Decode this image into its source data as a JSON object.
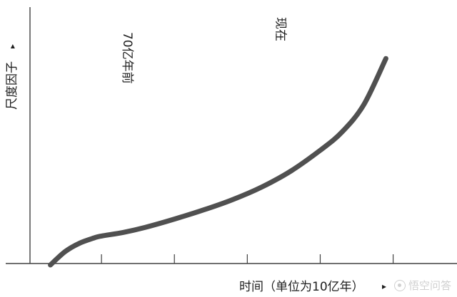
{
  "chart_data": {
    "type": "line",
    "title": "",
    "xlabel": "时间（单位为10亿年）",
    "ylabel": "尺度因子",
    "x_axis_arrow": "▸",
    "y_axis_arrow": "▸",
    "xlim": [
      0,
      5.2
    ],
    "ylim": [
      0,
      1.0
    ],
    "x_ticks": [
      1,
      2,
      3,
      4,
      5
    ],
    "grid": false,
    "legend": "none",
    "line_color": "#505050",
    "axis_color": "#404040",
    "series": [
      {
        "x": [
          0.3,
          0.5,
          0.7,
          0.9,
          1.0,
          1.3,
          1.6,
          2.0,
          2.4,
          2.8,
          3.2,
          3.6,
          4.0,
          4.3,
          4.6,
          4.9
        ],
        "y": [
          0.0,
          0.058,
          0.095,
          0.118,
          0.126,
          0.142,
          0.164,
          0.2,
          0.24,
          0.285,
          0.34,
          0.41,
          0.5,
          0.58,
          0.7,
          0.9
        ]
      }
    ],
    "annotations": [
      {
        "text": "70亿年前",
        "x": 1.35
      },
      {
        "text": "现在",
        "x": 3.45
      }
    ]
  },
  "watermark": {
    "text": "悟空问答",
    "logo_icon": "wukong-logo-icon"
  }
}
